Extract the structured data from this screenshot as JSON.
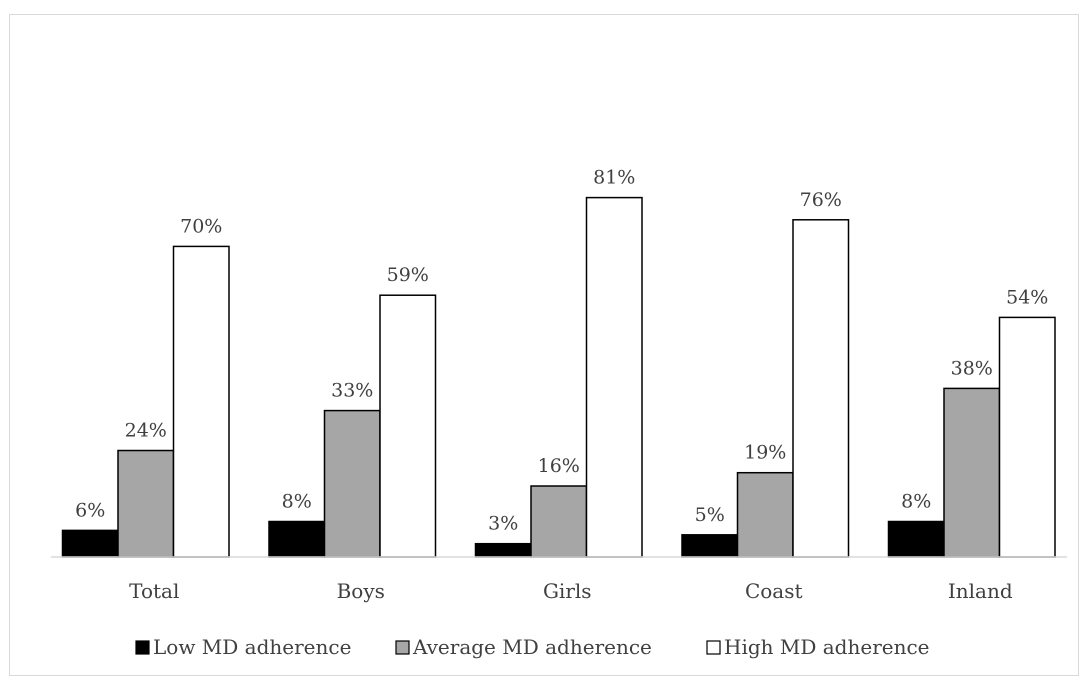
{
  "chart_data": {
    "type": "bar",
    "title": "",
    "xlabel": "",
    "ylabel": "",
    "ylim": [
      0,
      100
    ],
    "grid": false,
    "legend_position": "bottom",
    "categories": [
      "Total",
      "Boys",
      "Girls",
      "Coast",
      "Inland"
    ],
    "series": [
      {
        "name": "Low MD adherence",
        "values": [
          6,
          8,
          3,
          5,
          8
        ],
        "labels": [
          "6%",
          "8%",
          "3%",
          "5%",
          "8%"
        ],
        "color": "#000000"
      },
      {
        "name": "Average MD adherence",
        "values": [
          24,
          33,
          16,
          19,
          38
        ],
        "labels": [
          "24%",
          "33%",
          "16%",
          "19%",
          "38%"
        ],
        "color": "#a6a6a6"
      },
      {
        "name": "High MD adherence",
        "values": [
          70,
          59,
          81,
          76,
          54
        ],
        "labels": [
          "70%",
          "59%",
          "81%",
          "76%",
          "54%"
        ],
        "color": "#ffffff"
      }
    ]
  }
}
